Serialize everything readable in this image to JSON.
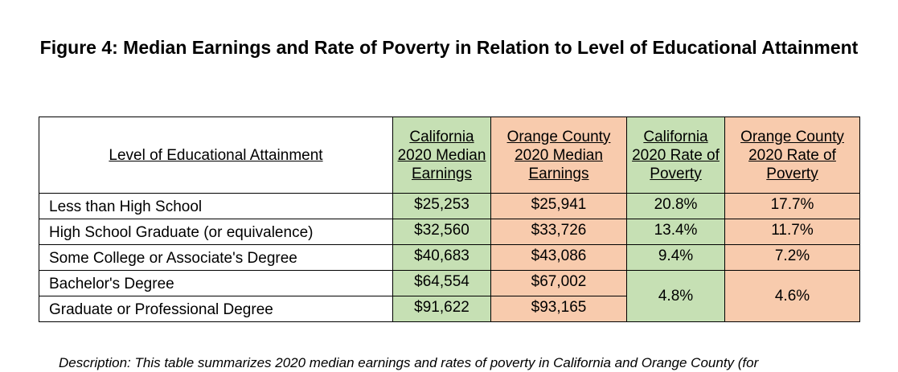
{
  "title": "Figure 4: Median Earnings and Rate of Poverty in Relation to Level of Educational Attainment",
  "table": {
    "headers": [
      "Level of Educational Attainment",
      "California 2020 Median Earnings",
      "Orange County 2020 Median Earnings",
      "California 2020 Rate of Poverty",
      "Orange County 2020 Rate of Poverty"
    ],
    "rows": [
      {
        "level": "Less than High School",
        "ca_earnings": "$25,253",
        "oc_earnings": "$25,941",
        "ca_poverty": "20.8%",
        "oc_poverty": "17.7%"
      },
      {
        "level": "High School Graduate (or equivalence)",
        "ca_earnings": "$32,560",
        "oc_earnings": "$33,726",
        "ca_poverty": "13.4%",
        "oc_poverty": "11.7%"
      },
      {
        "level": "Some College or Associate's Degree",
        "ca_earnings": "$40,683",
        "oc_earnings": "$43,086",
        "ca_poverty": "9.4%",
        "oc_poverty": "7.2%"
      },
      {
        "level": "Bachelor's Degree",
        "ca_earnings": "$64,554",
        "oc_earnings": "$67,002"
      },
      {
        "level": "Graduate or Professional Degree",
        "ca_earnings": "$91,622",
        "oc_earnings": "$93,165"
      }
    ],
    "merged_poverty": {
      "ca_poverty": "4.8%",
      "oc_poverty": "4.6%"
    },
    "colors": {
      "california": "#c6e0b4",
      "orange_county": "#f8cbad"
    }
  },
  "description": "Description: This table summarizes 2020 median earnings and rates of poverty in California and Orange County (for"
}
